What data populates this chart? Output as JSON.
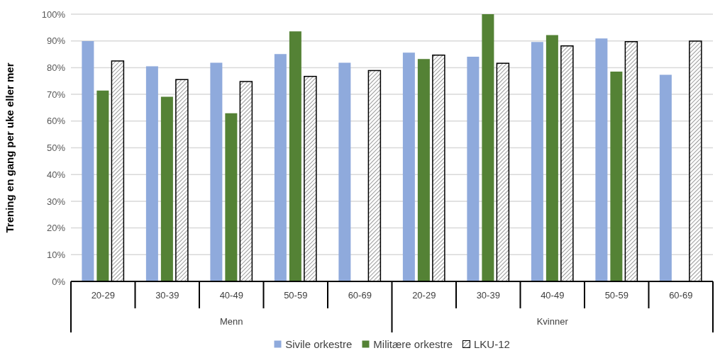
{
  "chart_data": {
    "type": "bar",
    "ylabel": "Trening en gang per uke eller mer",
    "categories": [
      "20-29",
      "30-39",
      "40-49",
      "50-59",
      "60-69",
      "20-29",
      "30-39",
      "40-49",
      "50-59",
      "60-69"
    ],
    "annotations": [
      "Menn",
      "Kvinner"
    ],
    "series": [
      {
        "name": "Sivile orkestre",
        "color": "#8faadc",
        "values": [
          89.9,
          80.5,
          81.8,
          85.1,
          81.8,
          85.6,
          84.1,
          89.6,
          90.9,
          77.3
        ]
      },
      {
        "name": "Militære orkestre",
        "color": "#548235",
        "values": [
          71.4,
          69.1,
          62.9,
          93.6,
          null,
          83.2,
          100,
          92.2,
          78.5,
          null
        ]
      },
      {
        "name": "LKU-12",
        "color": "#000000",
        "values": [
          82.5,
          75.5,
          74.8,
          76.7,
          78.9,
          84.7,
          81.6,
          88.1,
          89.7,
          89.9
        ]
      }
    ],
    "ylim": [
      0,
      100
    ],
    "yticks": [
      {
        "value": 0,
        "label": "0%"
      },
      {
        "value": 10,
        "label": "10%"
      },
      {
        "value": 20,
        "label": "20%"
      },
      {
        "value": 30,
        "label": "30%"
      },
      {
        "value": 40,
        "label": "40%"
      },
      {
        "value": 50,
        "label": "50%"
      },
      {
        "value": 60,
        "label": "60%"
      },
      {
        "value": 70,
        "label": "70%"
      },
      {
        "value": 80,
        "label": "80%"
      },
      {
        "value": 90,
        "label": "90%"
      },
      {
        "value": 100,
        "label": "100%"
      }
    ],
    "grid": "y",
    "legend": "bottom"
  }
}
